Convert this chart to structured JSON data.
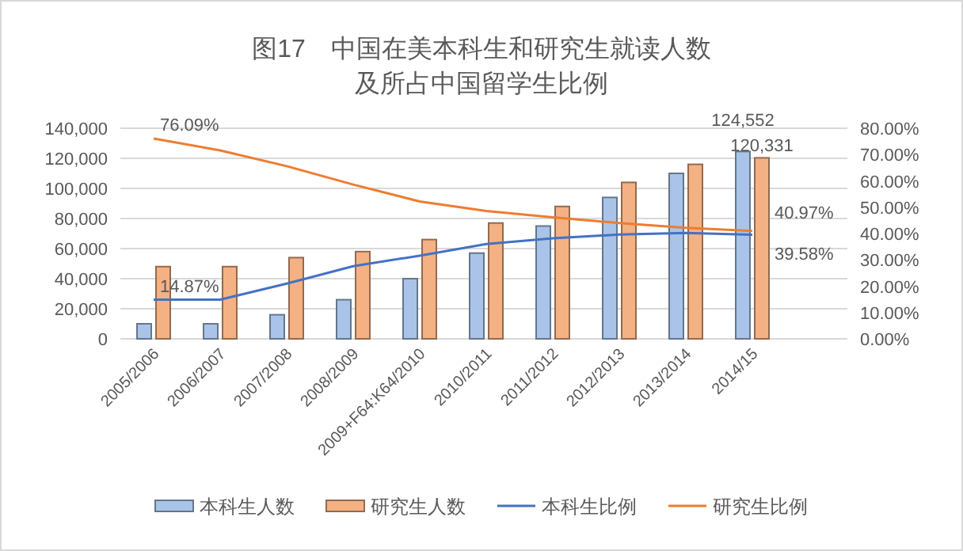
{
  "chart_data": {
    "type": "bar",
    "title": "图17　中国在美本科生和研究生就读人数",
    "subtitle": "及所占中国留学生比例",
    "categories": [
      "2005/2006",
      "2006/2007",
      "2007/2008",
      "2008/2009",
      "2009+F64:K64/2010",
      "2010/2011",
      "2011/2012",
      "2012/2013",
      "2013/2014",
      "2014/15"
    ],
    "series": [
      {
        "name": "本科生人数",
        "color": "#a9c4e8",
        "values": [
          10000,
          10000,
          16000,
          26000,
          40000,
          57000,
          75000,
          94000,
          110000,
          124552
        ],
        "value_labels": [
          null,
          null,
          null,
          null,
          null,
          null,
          null,
          null,
          null,
          "124,552"
        ]
      },
      {
        "name": "研究生人数",
        "color": "#f4b183",
        "values": [
          48000,
          48000,
          54000,
          58000,
          66000,
          77000,
          88000,
          104000,
          116000,
          120331
        ],
        "value_labels": [
          null,
          null,
          null,
          null,
          null,
          null,
          null,
          null,
          null,
          "120,331"
        ]
      },
      {
        "name": "本科生比例",
        "type": "line",
        "axis": "y2",
        "color": "#4472c4",
        "values": [
          14.87,
          14.9,
          21,
          27.6,
          31.6,
          36,
          38.2,
          39.6,
          40.2,
          39.58
        ],
        "value_labels": [
          "14.87%",
          null,
          null,
          null,
          null,
          null,
          null,
          null,
          null,
          "39.58%"
        ]
      },
      {
        "name": "研究生比例",
        "type": "line",
        "axis": "y2",
        "color": "#ed7d31",
        "values": [
          76.09,
          71.6,
          65.6,
          58.6,
          52.2,
          48.6,
          46.2,
          44,
          42.2,
          40.97
        ],
        "value_labels": [
          "76.09%",
          null,
          null,
          null,
          null,
          null,
          null,
          null,
          null,
          "40.97%"
        ]
      }
    ],
    "ylim": [
      0,
      140000
    ],
    "yticks": [
      0,
      {
        "value": 20000,
        "label": "20,000"
      },
      {
        "value": 40000,
        "label": "40,000"
      },
      {
        "value": 60000,
        "label": "60,000"
      },
      {
        "value": 80000,
        "label": "80,000"
      },
      {
        "value": 100000,
        "label": "100,000"
      },
      {
        "value": 120000,
        "label": "120,000"
      },
      {
        "value": 140000,
        "label": "140,000"
      }
    ],
    "y2lim": [
      0,
      80
    ],
    "y2ticks": [
      {
        "value": 0,
        "label": "0.00%"
      },
      {
        "value": 10,
        "label": "10.00%"
      },
      {
        "value": 20,
        "label": "20.00%"
      },
      {
        "value": 30,
        "label": "30.00%"
      },
      {
        "value": 40,
        "label": "40.00%"
      },
      {
        "value": 50,
        "label": "50.00%"
      },
      {
        "value": 60,
        "label": "60.00%"
      },
      {
        "value": 70,
        "label": "70.00%"
      },
      {
        "value": 80,
        "label": "80.00%"
      }
    ],
    "grid": "y",
    "legend": "bottom"
  }
}
